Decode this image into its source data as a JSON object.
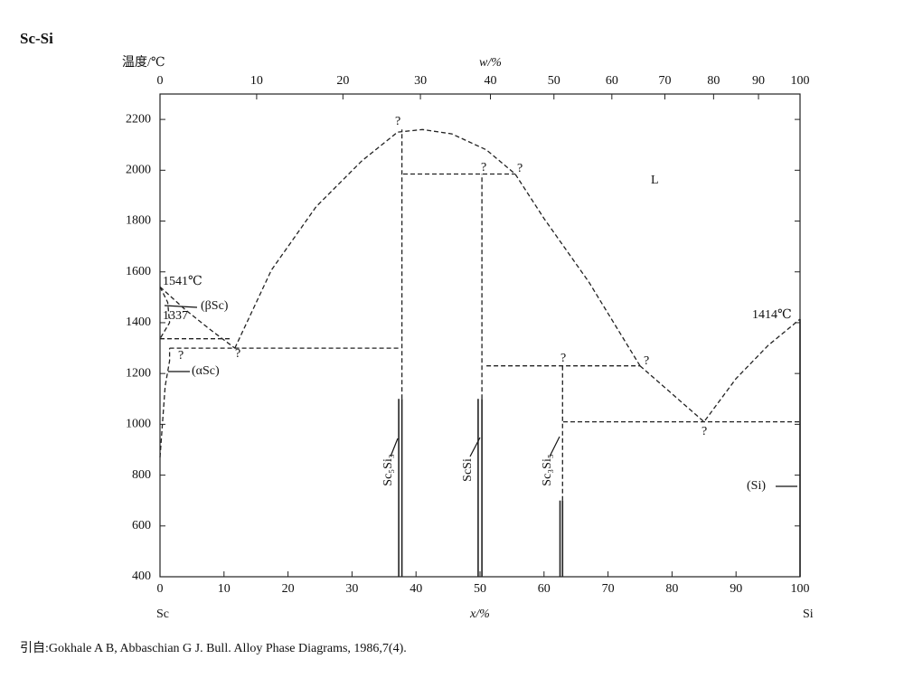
{
  "chart_data": {
    "type": "phase",
    "title": "Sc-Si",
    "y_label": "温度/℃",
    "top_x_label": "w/%",
    "x_label": "x/%",
    "left_element": "Sc",
    "right_element": "Si",
    "xlim": [
      0,
      100
    ],
    "xticks": [
      0,
      10,
      20,
      30,
      40,
      50,
      60,
      70,
      80,
      90,
      100
    ],
    "top_xticks": [
      0,
      10,
      20,
      30,
      40,
      50,
      60,
      70,
      80,
      90,
      100
    ],
    "ylim": [
      400,
      2300
    ],
    "yticks": [
      400,
      600,
      800,
      1000,
      1200,
      1400,
      1600,
      1800,
      2000,
      2200
    ],
    "color": "#222222",
    "lines": [
      {
        "style": "dashed",
        "x": [
          0,
          4,
          8,
          11.7
        ],
        "y": [
          1541,
          1450,
          1370,
          1300
        ]
      },
      {
        "style": "dashed",
        "x": [
          11.7,
          17.4,
          24.4,
          31.5,
          37.1,
          41,
          45.6,
          51,
          55.5,
          60,
          67,
          75
        ],
        "y": [
          1300,
          1607,
          1857,
          2036,
          2150,
          2160,
          2143,
          2080,
          1985,
          1810,
          1560,
          1230
        ]
      },
      {
        "style": "dashed",
        "x": [
          75,
          85,
          90,
          95,
          100
        ],
        "y": [
          1230,
          1010,
          1180,
          1310,
          1414
        ]
      },
      {
        "style": "dashed",
        "x": [
          0,
          11
        ],
        "y": [
          1337,
          1337
        ]
      },
      {
        "style": "dashed",
        "x": [
          1.5,
          37.5
        ],
        "y": [
          1300,
          1300
        ]
      },
      {
        "style": "dashed",
        "x": [
          38,
          55.5
        ],
        "y": [
          1985,
          1985
        ]
      },
      {
        "style": "dashed",
        "x": [
          51,
          75
        ],
        "y": [
          1230,
          1230
        ]
      },
      {
        "style": "dashed",
        "x": [
          63,
          100
        ],
        "y": [
          1010,
          1010
        ]
      },
      {
        "style": "dashed",
        "x": [
          0,
          1.2,
          1.5,
          0
        ],
        "y": [
          1541,
          1480,
          1400,
          1337
        ]
      },
      {
        "style": "dashed",
        "x": [
          0,
          0.8,
          1.5,
          1.5
        ],
        "y": [
          870,
          1150,
          1250,
          1300
        ]
      },
      {
        "style": "dashed",
        "x": [
          37.8,
          37.8
        ],
        "y": [
          1100,
          2160
        ]
      },
      {
        "style": "dashed",
        "x": [
          50.3,
          50.3
        ],
        "y": [
          1100,
          1985
        ]
      },
      {
        "style": "dashed",
        "x": [
          62.9,
          62.9
        ],
        "y": [
          700,
          1230
        ]
      },
      {
        "style": "solid",
        "x": [
          37.3,
          37.3
        ],
        "y": [
          400,
          1100
        ]
      },
      {
        "style": "solid",
        "x": [
          37.8,
          37.8
        ],
        "y": [
          400,
          1100
        ]
      },
      {
        "style": "solid",
        "x": [
          49.7,
          49.7
        ],
        "y": [
          400,
          1100
        ]
      },
      {
        "style": "solid",
        "x": [
          50.3,
          50.3
        ],
        "y": [
          400,
          1100
        ]
      },
      {
        "style": "solid",
        "x": [
          62.5,
          62.5
        ],
        "y": [
          400,
          700
        ]
      },
      {
        "style": "solid",
        "x": [
          62.9,
          62.9
        ],
        "y": [
          400,
          700
        ]
      },
      {
        "style": "solid",
        "x": [
          100,
          100
        ],
        "y": [
          400,
          1414
        ]
      }
    ],
    "annotations": [
      "L",
      "1541℃",
      "1337",
      "(βSc)",
      "(αSc)",
      "1414℃",
      "Sc₅Si₃",
      "ScSi",
      "Sc₃Si₅",
      "(Si)",
      "?",
      "?",
      "?",
      "?",
      "?",
      "?",
      "?",
      "?"
    ],
    "source": "引自:Gokhale A B, Abbaschian G J. Bull. Alloy Phase Diagrams, 1986,7(4)."
  }
}
